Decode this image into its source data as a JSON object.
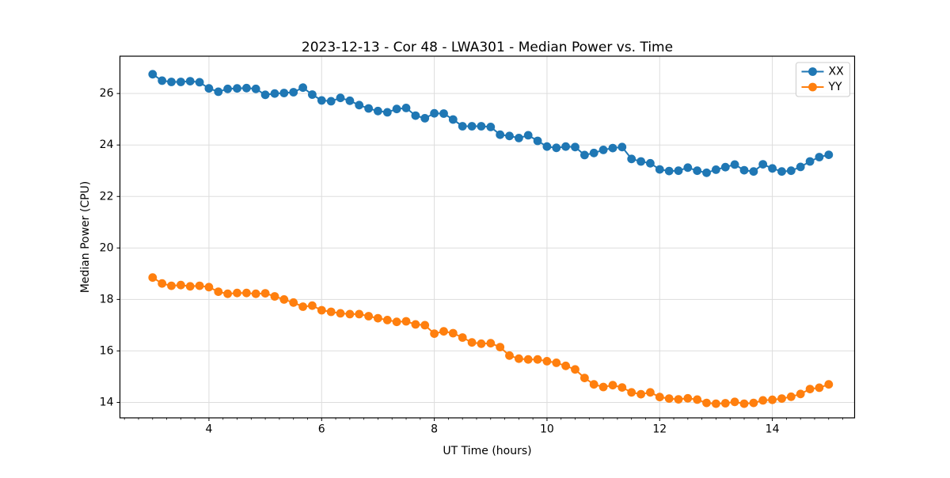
{
  "figure": {
    "title": "2023-12-13 - Cor 48 - LWA301 - Median Power vs. Time",
    "xlabel": "UT Time (hours)",
    "ylabel": "Median Power (CPU)"
  },
  "legend": {
    "items": [
      {
        "label": "XX",
        "color": "#1f77b4"
      },
      {
        "label": "YY",
        "color": "#ff7f0e"
      }
    ]
  },
  "colors": {
    "series_xx": "#1f77b4",
    "series_yy": "#ff7f0e",
    "grid": "#dddddd",
    "spine": "#000000",
    "legend_border": "#cccccc"
  },
  "chart_data": {
    "type": "line",
    "title": "2023-12-13 - Cor 48 - LWA301 - Median Power vs. Time",
    "xlabel": "UT Time (hours)",
    "ylabel": "Median Power (CPU)",
    "grid": true,
    "legend_position": "upper right",
    "marker": "circle",
    "xlim": [
      2.42,
      15.46
    ],
    "ylim": [
      13.4,
      27.45
    ],
    "xticks": [
      4,
      6,
      8,
      10,
      12,
      14
    ],
    "yticks": [
      14,
      16,
      18,
      20,
      22,
      24,
      26
    ],
    "x_minor_step": 0.25,
    "x": [
      3.0,
      3.167,
      3.333,
      3.5,
      3.667,
      3.833,
      4.0,
      4.167,
      4.333,
      4.5,
      4.667,
      4.833,
      5.0,
      5.167,
      5.333,
      5.5,
      5.667,
      5.833,
      6.0,
      6.167,
      6.333,
      6.5,
      6.667,
      6.833,
      7.0,
      7.167,
      7.333,
      7.5,
      7.667,
      7.833,
      8.0,
      8.167,
      8.333,
      8.5,
      8.667,
      8.833,
      9.0,
      9.167,
      9.333,
      9.5,
      9.667,
      9.833,
      10.0,
      10.167,
      10.333,
      10.5,
      10.667,
      10.833,
      11.0,
      11.167,
      11.333,
      11.5,
      11.667,
      11.833,
      12.0,
      12.167,
      12.333,
      12.5,
      12.667,
      12.833,
      13.0,
      13.167,
      13.333,
      13.5,
      13.667,
      13.833,
      14.0,
      14.167,
      14.333,
      14.5,
      14.667,
      14.833,
      15.0
    ],
    "series": [
      {
        "name": "XX",
        "color": "#1f77b4",
        "values": [
          26.75,
          26.5,
          26.45,
          26.45,
          26.48,
          26.44,
          26.2,
          26.07,
          26.18,
          26.2,
          26.21,
          26.18,
          25.95,
          26.0,
          26.02,
          26.05,
          26.23,
          25.96,
          25.73,
          25.7,
          25.83,
          25.72,
          25.55,
          25.42,
          25.32,
          25.27,
          25.4,
          25.44,
          25.14,
          25.04,
          25.23,
          25.22,
          24.99,
          24.73,
          24.73,
          24.73,
          24.7,
          24.4,
          24.35,
          24.27,
          24.38,
          24.16,
          23.94,
          23.89,
          23.94,
          23.92,
          23.61,
          23.69,
          23.81,
          23.88,
          23.92,
          23.46,
          23.36,
          23.29,
          23.05,
          22.99,
          23.0,
          23.12,
          23.0,
          22.92,
          23.04,
          23.14,
          23.24,
          23.02,
          22.97,
          23.25,
          23.09,
          22.97,
          23.0,
          23.15,
          23.36,
          23.53,
          23.62
        ]
      },
      {
        "name": "YY",
        "color": "#ff7f0e",
        "values": [
          18.85,
          18.62,
          18.53,
          18.56,
          18.51,
          18.53,
          18.48,
          18.3,
          18.22,
          18.25,
          18.25,
          18.22,
          18.24,
          18.12,
          18.0,
          17.88,
          17.72,
          17.76,
          17.58,
          17.52,
          17.46,
          17.43,
          17.43,
          17.35,
          17.27,
          17.2,
          17.13,
          17.15,
          17.03,
          17.0,
          16.67,
          16.76,
          16.69,
          16.52,
          16.33,
          16.28,
          16.3,
          16.15,
          15.82,
          15.7,
          15.67,
          15.67,
          15.6,
          15.54,
          15.42,
          15.28,
          14.95,
          14.7,
          14.6,
          14.67,
          14.58,
          14.39,
          14.32,
          14.39,
          14.21,
          14.15,
          14.12,
          14.16,
          14.11,
          13.98,
          13.95,
          13.97,
          14.02,
          13.95,
          13.98,
          14.08,
          14.1,
          14.15,
          14.22,
          14.33,
          14.52,
          14.57,
          14.7
        ]
      }
    ]
  }
}
